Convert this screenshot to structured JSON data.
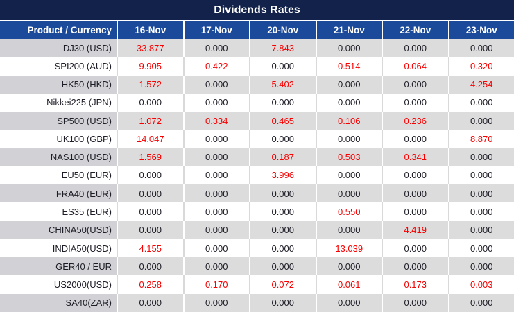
{
  "title": "Dividends Rates",
  "colors": {
    "title_bg": "#13224a",
    "header_bg": "#1b4a9b",
    "row_alt_bg": "#dcdcdc",
    "row_alt_label_bg": "#d1d1d6",
    "row_bg": "#ffffff",
    "separator_on_alt_rows": "#ffffff",
    "separator_on_white_rows": "#d9d9d9",
    "zero_value_text": "#1d1d27",
    "nonzero_value_text": "#f80000",
    "header_text": "#ffffff"
  },
  "chart_data": {
    "type": "table",
    "title": "Dividends Rates",
    "label_header": "Product / Currency",
    "columns": [
      "16-Nov",
      "17-Nov",
      "20-Nov",
      "21-Nov",
      "22-Nov",
      "23-Nov"
    ],
    "rows": [
      {
        "product": "DJ30 (USD)",
        "values": [
          "33.877",
          "0.000",
          "7.843",
          "0.000",
          "0.000",
          "0.000"
        ]
      },
      {
        "product": "SPI200 (AUD)",
        "values": [
          "9.905",
          "0.422",
          "0.000",
          "0.514",
          "0.064",
          "0.320"
        ]
      },
      {
        "product": "HK50 (HKD)",
        "values": [
          "1.572",
          "0.000",
          "5.402",
          "0.000",
          "0.000",
          "4.254"
        ]
      },
      {
        "product": "Nikkei225 (JPN)",
        "values": [
          "0.000",
          "0.000",
          "0.000",
          "0.000",
          "0.000",
          "0.000"
        ]
      },
      {
        "product": "SP500 (USD)",
        "values": [
          "1.072",
          "0.334",
          "0.465",
          "0.106",
          "0.236",
          "0.000"
        ]
      },
      {
        "product": "UK100 (GBP)",
        "values": [
          "14.047",
          "0.000",
          "0.000",
          "0.000",
          "0.000",
          "8.870"
        ]
      },
      {
        "product": "NAS100 (USD)",
        "values": [
          "1.569",
          "0.000",
          "0.187",
          "0.503",
          "0.341",
          "0.000"
        ]
      },
      {
        "product": "EU50 (EUR)",
        "values": [
          "0.000",
          "0.000",
          "3.996",
          "0.000",
          "0.000",
          "0.000"
        ]
      },
      {
        "product": "FRA40 (EUR)",
        "values": [
          "0.000",
          "0.000",
          "0.000",
          "0.000",
          "0.000",
          "0.000"
        ]
      },
      {
        "product": "ES35 (EUR)",
        "values": [
          "0.000",
          "0.000",
          "0.000",
          "0.550",
          "0.000",
          "0.000"
        ]
      },
      {
        "product": "CHINA50(USD)",
        "values": [
          "0.000",
          "0.000",
          "0.000",
          "0.000",
          "4.419",
          "0.000"
        ]
      },
      {
        "product": "INDIA50(USD)",
        "values": [
          "4.155",
          "0.000",
          "0.000",
          "13.039",
          "0.000",
          "0.000"
        ]
      },
      {
        "product": "GER40 / EUR",
        "values": [
          "0.000",
          "0.000",
          "0.000",
          "0.000",
          "0.000",
          "0.000"
        ]
      },
      {
        "product": "US2000(USD)",
        "values": [
          "0.258",
          "0.170",
          "0.072",
          "0.061",
          "0.173",
          "0.003"
        ]
      },
      {
        "product": "SA40(ZAR)",
        "values": [
          "0.000",
          "0.000",
          "0.000",
          "0.000",
          "0.000",
          "0.000"
        ]
      }
    ]
  }
}
